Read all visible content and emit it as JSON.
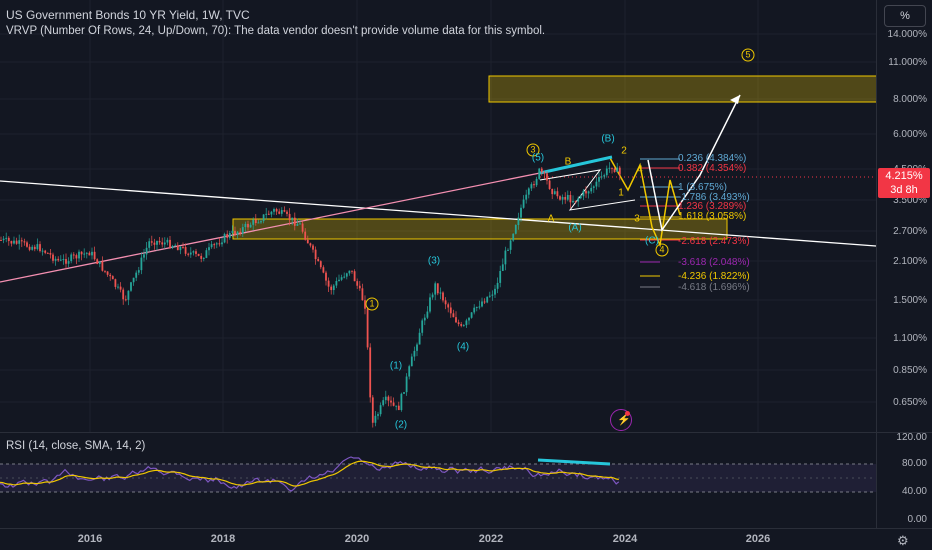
{
  "header": {
    "title": "US Government Bonds 10 YR Yield, 1W, TVC",
    "indicator": "VRVP (Number Of Rows, 24, Up/Down, 70): The data vendor doesn't provide volume data for this symbol."
  },
  "scale_button": "%",
  "price_badge": {
    "price": "4.215%",
    "countdown": "3d 8h",
    "color": "#f23645"
  },
  "y_axis": [
    "14.000%",
    "11.000%",
    "8.000%",
    "6.000%",
    "4.500%",
    "3.500%",
    "2.700%",
    "2.100%",
    "1.500%",
    "1.100%",
    "0.850%",
    "0.650%"
  ],
  "rsi": {
    "legend": "RSI (14, close, SMA, 14, 2)",
    "y_axis": [
      "120.00",
      "80.00",
      "40.00",
      "0.00"
    ],
    "line_color": "#7e57c2",
    "sma_color": "#f0c800"
  },
  "x_axis": [
    "2016",
    "2018",
    "2020",
    "2022",
    "2024",
    "2026"
  ],
  "fib_labels": [
    {
      "text": "0.236 (4.384%)",
      "color": "#5fa8d3"
    },
    {
      "text": "0.382 (4.354%)",
      "color": "#f23645"
    },
    {
      "text": "1 (3.675%)",
      "color": "#5fa8d3"
    },
    {
      "text": "-1.786 (3.493%)",
      "color": "#5fa8d3"
    },
    {
      "text": "1.236 (3.289%)",
      "color": "#f23645"
    },
    {
      "text": "1.618 (3.058%)",
      "color": "#f0c800"
    },
    {
      "text": "-2.618 (2.473%)",
      "color": "#f23645"
    },
    {
      "text": "-3.618 (2.048%)",
      "color": "#9c27b0"
    },
    {
      "text": "-4.236 (1.822%)",
      "color": "#f0c800"
    },
    {
      "text": "-4.618 (1.696%)",
      "color": "#787b86"
    }
  ],
  "waves": [
    {
      "text": "1",
      "color": "#f0c800",
      "circled": true
    },
    {
      "text": "(1)",
      "color": "#26c6da",
      "circled": false
    },
    {
      "text": "(2)",
      "color": "#26c6da",
      "circled": false
    },
    {
      "text": "(3)",
      "color": "#26c6da",
      "circled": false
    },
    {
      "text": "(4)",
      "color": "#26c6da",
      "circled": false
    },
    {
      "text": "3",
      "color": "#f0c800",
      "circled": true
    },
    {
      "text": "(5)",
      "color": "#26c6da",
      "circled": false
    },
    {
      "text": "B",
      "color": "#f0c800",
      "circled": false
    },
    {
      "text": "(B)",
      "color": "#26c6da",
      "circled": false
    },
    {
      "text": "2",
      "color": "#f0c800",
      "circled": false
    },
    {
      "text": "4",
      "color": "#f0c800",
      "circled": false
    },
    {
      "text": "1",
      "color": "#f0c800",
      "circled": false
    },
    {
      "text": "3",
      "color": "#f0c800",
      "circled": false
    },
    {
      "text": "A",
      "color": "#f0c800",
      "circled": false
    },
    {
      "text": "(A)",
      "color": "#26c6da",
      "circled": false
    },
    {
      "text": "(C)",
      "color": "#26c6da",
      "circled": false
    },
    {
      "text": "4",
      "color": "#f0c800",
      "circled": true
    },
    {
      "text": "5",
      "color": "#f0c800",
      "circled": true
    }
  ],
  "icons": {
    "lightning": "⚡",
    "settings": "⚙"
  }
}
